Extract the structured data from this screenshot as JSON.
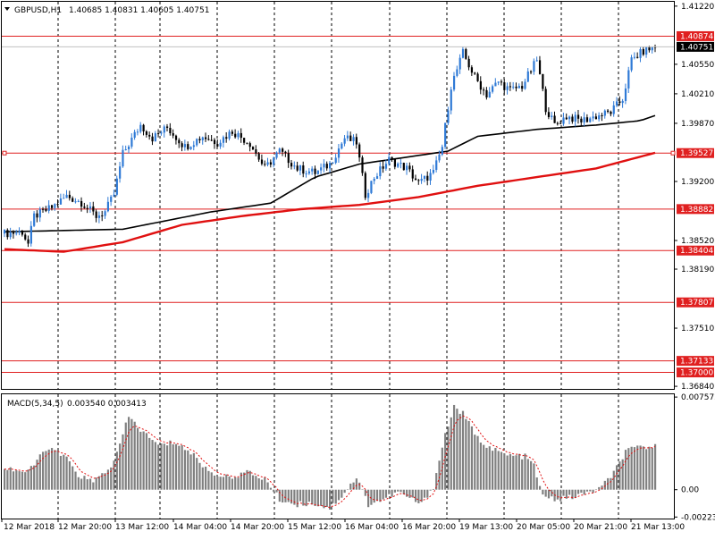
{
  "colors": {
    "bull": "#2f7ad6",
    "bear": "#000000",
    "level": "#e02020",
    "ma_slow": "#000000",
    "ma_fast": "#e01010",
    "macd_bar": "#808080",
    "macd_signal": "#e01010",
    "grid": "#000000",
    "price_tag": "#000000",
    "level_tag": "#e02020"
  },
  "header": {
    "title": "GBPUSD,H1",
    "ohlc": "1.40685 1.40831 1.40605 1.40751"
  },
  "macd_header": {
    "title": "MACD(5,34,5)",
    "values": "0.003540 0.003413"
  },
  "current_price_label": "1.40751",
  "level_labels": [
    "1.40874",
    "1.39527",
    "1.38882",
    "1.38404",
    "1.37807",
    "1.37133",
    "1.37000"
  ],
  "chart_data": [
    {
      "type": "candlestick",
      "symbol": "GBPUSD",
      "timeframe": "H1",
      "ylim": [
        1.3681,
        1.4127
      ],
      "y_ticks": [
        "1.41220",
        "1.40550",
        "1.40210",
        "1.39870",
        "1.39200",
        "1.38520",
        "1.38190",
        "1.37510",
        "1.36840"
      ],
      "x_labels": [
        "12 Mar 2018",
        "12 Mar 20:00",
        "13 Mar 12:00",
        "14 Mar 04:00",
        "14 Mar 20:00",
        "15 Mar 12:00",
        "16 Mar 04:00",
        "16 Mar 20:00",
        "19 Mar 13:00",
        "20 Mar 05:00",
        "20 Mar 21:00",
        "21 Mar 13:00"
      ],
      "horizontal_levels": [
        1.40874,
        1.39527,
        1.38882,
        1.38404,
        1.37807,
        1.37133,
        1.37
      ],
      "anchors": [
        [
          0,
          1.386
        ],
        [
          6,
          1.3862
        ],
        [
          8,
          1.3848
        ],
        [
          10,
          1.388
        ],
        [
          16,
          1.389
        ],
        [
          21,
          1.3903
        ],
        [
          26,
          1.3896
        ],
        [
          31,
          1.388
        ],
        [
          34,
          1.3885
        ],
        [
          37,
          1.3905
        ],
        [
          40,
          1.3952
        ],
        [
          46,
          1.3985
        ],
        [
          50,
          1.397
        ],
        [
          55,
          1.3982
        ],
        [
          61,
          1.396
        ],
        [
          67,
          1.3972
        ],
        [
          72,
          1.3965
        ],
        [
          77,
          1.3978
        ],
        [
          83,
          1.3964
        ],
        [
          88,
          1.3935
        ],
        [
          93,
          1.3955
        ],
        [
          99,
          1.3935
        ],
        [
          105,
          1.393
        ],
        [
          110,
          1.394
        ],
        [
          115,
          1.397
        ],
        [
          119,
          1.3965
        ],
        [
          122,
          1.3905
        ],
        [
          125,
          1.3925
        ],
        [
          130,
          1.3945
        ],
        [
          136,
          1.3935
        ],
        [
          140,
          1.3918
        ],
        [
          145,
          1.393
        ],
        [
          148,
          1.396
        ],
        [
          151,
          1.403
        ],
        [
          155,
          1.4068
        ],
        [
          159,
          1.404
        ],
        [
          163,
          1.402
        ],
        [
          167,
          1.4035
        ],
        [
          171,
          1.4025
        ],
        [
          175,
          1.403
        ],
        [
          180,
          1.406
        ],
        [
          183,
          1.4005
        ],
        [
          186,
          1.3985
        ],
        [
          190,
          1.3995
        ],
        [
          195,
          1.399
        ],
        [
          200,
          1.3995
        ],
        [
          205,
          1.4
        ],
        [
          209,
          1.4015
        ],
        [
          212,
          1.406
        ],
        [
          216,
          1.407
        ],
        [
          220,
          1.4075
        ]
      ],
      "ma_slow": [
        [
          0,
          1.3862
        ],
        [
          40,
          1.3865
        ],
        [
          70,
          1.3885
        ],
        [
          90,
          1.3895
        ],
        [
          105,
          1.3925
        ],
        [
          120,
          1.394
        ],
        [
          140,
          1.395
        ],
        [
          150,
          1.3955
        ],
        [
          160,
          1.3972
        ],
        [
          180,
          1.398
        ],
        [
          200,
          1.3985
        ],
        [
          215,
          1.399
        ],
        [
          220,
          1.3996
        ]
      ],
      "ma_fast": [
        [
          0,
          1.3842
        ],
        [
          20,
          1.3839
        ],
        [
          40,
          1.385
        ],
        [
          60,
          1.387
        ],
        [
          80,
          1.388
        ],
        [
          100,
          1.3888
        ],
        [
          120,
          1.3893
        ],
        [
          140,
          1.3902
        ],
        [
          160,
          1.3915
        ],
        [
          180,
          1.3925
        ],
        [
          200,
          1.3935
        ],
        [
          220,
          1.3953
        ]
      ]
    },
    {
      "type": "bar",
      "name": "MACD(5,34,5)",
      "ylim": [
        -0.00236,
        0.0078
      ],
      "y_ticks": [
        "0.007572",
        "0.00",
        "-0.002236"
      ],
      "anchors": [
        [
          0,
          0.0018
        ],
        [
          8,
          0.0014
        ],
        [
          14,
          0.0034
        ],
        [
          20,
          0.0028
        ],
        [
          25,
          0.0012
        ],
        [
          30,
          0.0006
        ],
        [
          37,
          0.0022
        ],
        [
          42,
          0.006
        ],
        [
          46,
          0.0049
        ],
        [
          52,
          0.0036
        ],
        [
          58,
          0.0039
        ],
        [
          64,
          0.0028
        ],
        [
          69,
          0.0015
        ],
        [
          75,
          0.001
        ],
        [
          82,
          0.0014
        ],
        [
          88,
          0.0009
        ],
        [
          93,
          -0.0008
        ],
        [
          98,
          -0.0012
        ],
        [
          104,
          -0.0011
        ],
        [
          110,
          -0.0015
        ],
        [
          114,
          -0.0005
        ],
        [
          119,
          0.001
        ],
        [
          123,
          -0.0012
        ],
        [
          128,
          -0.0008
        ],
        [
          133,
          -0.0002
        ],
        [
          137,
          -0.0007
        ],
        [
          141,
          -0.0012
        ],
        [
          145,
          0.0003
        ],
        [
          149,
          0.0045
        ],
        [
          152,
          0.0068
        ],
        [
          155,
          0.0062
        ],
        [
          160,
          0.0042
        ],
        [
          165,
          0.0033
        ],
        [
          170,
          0.0028
        ],
        [
          176,
          0.0027
        ],
        [
          179,
          0.002
        ],
        [
          182,
          -0.0006
        ],
        [
          187,
          -0.0008
        ],
        [
          192,
          -0.0006
        ],
        [
          197,
          -0.0003
        ],
        [
          202,
          0.0002
        ],
        [
          206,
          0.0014
        ],
        [
          210,
          0.0031
        ],
        [
          215,
          0.0035
        ],
        [
          220,
          0.0035
        ]
      ]
    }
  ]
}
